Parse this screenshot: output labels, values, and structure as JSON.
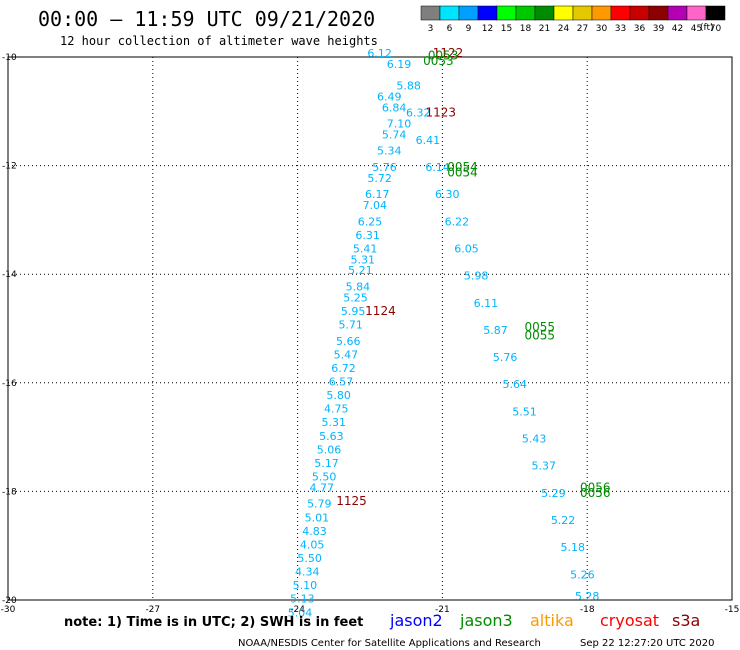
{
  "header": {
    "title": "00:00 – 11:59 UTC 09/21/2020",
    "subtitle": "12 hour collection of altimeter wave heights"
  },
  "legend": {
    "unit": "(ft)",
    "bins": [
      {
        "label": "3",
        "color": "#7f7f7f"
      },
      {
        "label": "6",
        "color": "#00e5ff"
      },
      {
        "label": "9",
        "color": "#00a0ff"
      },
      {
        "label": "12",
        "color": "#0000ff"
      },
      {
        "label": "15",
        "color": "#00ff00"
      },
      {
        "label": "18",
        "color": "#00c800"
      },
      {
        "label": "21",
        "color": "#008c00"
      },
      {
        "label": "24",
        "color": "#ffff00"
      },
      {
        "label": "27",
        "color": "#e6c800"
      },
      {
        "label": "30",
        "color": "#ff9900"
      },
      {
        "label": "33",
        "color": "#ff0000"
      },
      {
        "label": "36",
        "color": "#c80000"
      },
      {
        "label": "39",
        "color": "#8c0000"
      },
      {
        "label": "42",
        "color": "#b400b4"
      },
      {
        "label": "45",
        "color": "#ff64c8"
      },
      {
        "label": "70",
        "color": "#000000"
      }
    ]
  },
  "footer": {
    "note": "note: 1) Time is in UTC; 2) SWH is in feet",
    "satellites": [
      {
        "name": "jason2",
        "color": "#0000ff"
      },
      {
        "name": "jason3",
        "color": "#008c00"
      },
      {
        "name": "altika",
        "color": "#ff9900"
      },
      {
        "name": "cryosat",
        "color": "#ff0000"
      },
      {
        "name": "s3a",
        "color": "#8c0000"
      }
    ],
    "credit": "NOAA/NESDIS Center for Satellite Applications and Research",
    "timestamp": "Sep 22 12:27:20 UTC 2020"
  },
  "chart_data": {
    "type": "scatter",
    "xlim": [
      -30,
      -15
    ],
    "ylim": [
      -20,
      -10
    ],
    "x_ticks": [
      -30,
      -27,
      -24,
      -21,
      -18,
      -15
    ],
    "y_ticks": [
      -10,
      -12,
      -14,
      -16,
      -18,
      -20
    ],
    "grid": true,
    "series": [
      {
        "name": "s3a",
        "color": "#00b4ff",
        "points": [
          {
            "x": -22.3,
            "y": -10.0,
            "v": "6.12"
          },
          {
            "x": -22.1,
            "y": -10.8,
            "v": "6.49"
          },
          {
            "x": -22.0,
            "y": -11.0,
            "v": "6.84"
          },
          {
            "x": -21.9,
            "y": -11.3,
            "v": "7.10"
          },
          {
            "x": -22.0,
            "y": -11.5,
            "v": "5.74"
          },
          {
            "x": -22.1,
            "y": -11.8,
            "v": "5.34"
          },
          {
            "x": -22.2,
            "y": -12.1,
            "v": "5.76"
          },
          {
            "x": -22.3,
            "y": -12.3,
            "v": "5.72"
          },
          {
            "x": -22.35,
            "y": -12.6,
            "v": "6.17"
          },
          {
            "x": -22.4,
            "y": -12.8,
            "v": "7.04"
          },
          {
            "x": -22.5,
            "y": -13.1,
            "v": "6.25"
          },
          {
            "x": -22.55,
            "y": -13.35,
            "v": "6.31"
          },
          {
            "x": -22.6,
            "y": -13.6,
            "v": "5.41"
          },
          {
            "x": -22.65,
            "y": -13.8,
            "v": "5.31"
          },
          {
            "x": -22.7,
            "y": -14.0,
            "v": "5.21"
          },
          {
            "x": -22.75,
            "y": -14.3,
            "v": "5.84"
          },
          {
            "x": -22.8,
            "y": -14.5,
            "v": "5.25"
          },
          {
            "x": -22.85,
            "y": -14.75,
            "v": "5.95"
          },
          {
            "x": -22.9,
            "y": -15.0,
            "v": "5.71"
          },
          {
            "x": -22.95,
            "y": -15.3,
            "v": "5.66"
          },
          {
            "x": -23.0,
            "y": -15.55,
            "v": "5.47"
          },
          {
            "x": -23.05,
            "y": -15.8,
            "v": "6.72"
          },
          {
            "x": -23.1,
            "y": -16.05,
            "v": "6.57"
          },
          {
            "x": -23.15,
            "y": -16.3,
            "v": "5.80"
          },
          {
            "x": -23.2,
            "y": -16.55,
            "v": "4.75"
          },
          {
            "x": -23.25,
            "y": -16.8,
            "v": "5.31"
          },
          {
            "x": -23.3,
            "y": -17.05,
            "v": "5.63"
          },
          {
            "x": -23.35,
            "y": -17.3,
            "v": "5.06"
          },
          {
            "x": -23.4,
            "y": -17.55,
            "v": "5.17"
          },
          {
            "x": -23.45,
            "y": -17.8,
            "v": "5.50"
          },
          {
            "x": -23.5,
            "y": -18.0,
            "v": "4.77"
          },
          {
            "x": -23.55,
            "y": -18.3,
            "v": "5.79"
          },
          {
            "x": -23.6,
            "y": -18.55,
            "v": "5.01"
          },
          {
            "x": -23.65,
            "y": -18.8,
            "v": "4.83"
          },
          {
            "x": -23.7,
            "y": -19.05,
            "v": "4.05"
          },
          {
            "x": -23.75,
            "y": -19.3,
            "v": "5.50"
          },
          {
            "x": -23.8,
            "y": -19.55,
            "v": "4.34"
          },
          {
            "x": -23.85,
            "y": -19.8,
            "v": "5.10"
          },
          {
            "x": -23.9,
            "y": -20.05,
            "v": "5.13"
          },
          {
            "x": -23.95,
            "y": -20.3,
            "v": "5.04"
          }
        ]
      },
      {
        "name": "jason3",
        "color": "#00b4ff",
        "points": [
          {
            "x": -21.9,
            "y": -10.2,
            "v": "6.19"
          },
          {
            "x": -21.7,
            "y": -10.6,
            "v": "5.88"
          },
          {
            "x": -21.5,
            "y": -11.1,
            "v": "6.32"
          },
          {
            "x": -21.3,
            "y": -11.6,
            "v": "6.41"
          },
          {
            "x": -21.1,
            "y": -12.1,
            "v": "6.14"
          },
          {
            "x": -20.9,
            "y": -12.6,
            "v": "6.30"
          },
          {
            "x": -20.7,
            "y": -13.1,
            "v": "6.22"
          },
          {
            "x": -20.5,
            "y": -13.6,
            "v": "6.05"
          },
          {
            "x": -20.3,
            "y": -14.1,
            "v": "5.98"
          },
          {
            "x": -20.1,
            "y": -14.6,
            "v": "6.11"
          },
          {
            "x": -19.9,
            "y": -15.1,
            "v": "5.87"
          },
          {
            "x": -19.7,
            "y": -15.6,
            "v": "5.76"
          },
          {
            "x": -19.5,
            "y": -16.1,
            "v": "5.64"
          },
          {
            "x": -19.3,
            "y": -16.6,
            "v": "5.51"
          },
          {
            "x": -19.1,
            "y": -17.1,
            "v": "5.43"
          },
          {
            "x": -18.9,
            "y": -17.6,
            "v": "5.37"
          },
          {
            "x": -18.7,
            "y": -18.1,
            "v": "5.29"
          },
          {
            "x": -18.5,
            "y": -18.6,
            "v": "5.22"
          },
          {
            "x": -18.3,
            "y": -19.1,
            "v": "5.18"
          },
          {
            "x": -18.1,
            "y": -19.6,
            "v": "5.26"
          },
          {
            "x": -18.0,
            "y": -20.0,
            "v": "5.28"
          }
        ]
      }
    ],
    "time_labels": [
      {
        "x": -21.2,
        "y": -10.0,
        "text": "1122",
        "color": "#8c0000"
      },
      {
        "x": -21.3,
        "y": -10.05,
        "text": "0053",
        "color": "#008c00"
      },
      {
        "x": -21.4,
        "y": -10.15,
        "text": "0053",
        "color": "#008c00"
      },
      {
        "x": -21.35,
        "y": -11.1,
        "text": "1123",
        "color": "#8c0000"
      },
      {
        "x": -20.9,
        "y": -12.1,
        "text": "0054",
        "color": "#008c00"
      },
      {
        "x": -20.9,
        "y": -12.2,
        "text": "0054",
        "color": "#008c00"
      },
      {
        "x": -22.6,
        "y": -14.75,
        "text": "1124",
        "color": "#8c0000"
      },
      {
        "x": -19.3,
        "y": -15.05,
        "text": "0055",
        "color": "#008c00"
      },
      {
        "x": -19.3,
        "y": -15.2,
        "text": "0055",
        "color": "#008c00"
      },
      {
        "x": -23.2,
        "y": -18.25,
        "text": "1125",
        "color": "#8c0000"
      },
      {
        "x": -18.15,
        "y": -18.0,
        "text": "0056",
        "color": "#008c00"
      },
      {
        "x": -18.15,
        "y": -18.1,
        "text": "0056",
        "color": "#008c00"
      }
    ]
  }
}
